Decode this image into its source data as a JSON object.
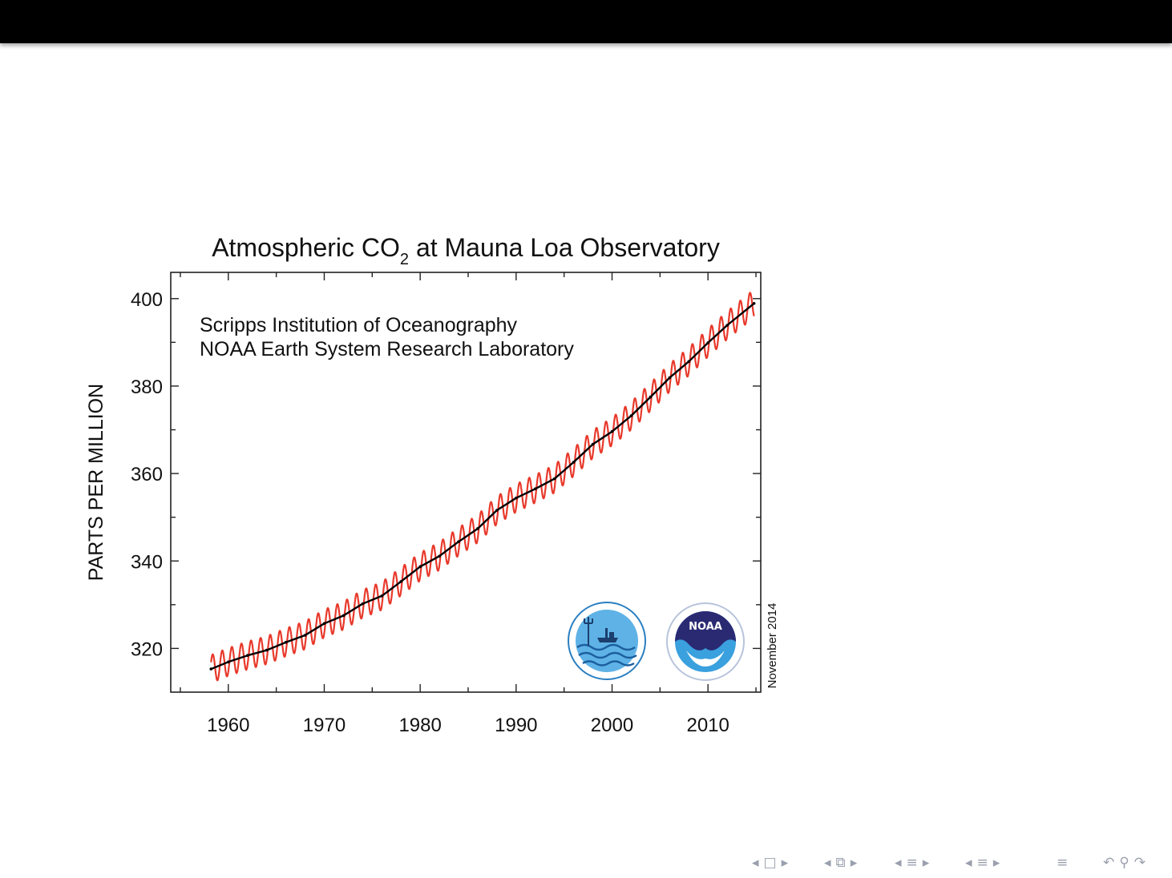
{
  "chart_data": {
    "type": "line",
    "title_main": "Atmospheric CO",
    "title_sub": "2",
    "title_rest": " at Mauna Loa Observatory",
    "ylabel": "PARTS PER MILLION",
    "xlabel": "",
    "xlim": [
      1954,
      2015.5
    ],
    "ylim": [
      310,
      406
    ],
    "x_ticks": [
      1960,
      1970,
      1980,
      1990,
      2000,
      2010
    ],
    "x_tick_labels": [
      "1960",
      "1970",
      "1980",
      "1990",
      "2000",
      "2010"
    ],
    "y_ticks": [
      320,
      340,
      360,
      380,
      400
    ],
    "y_tick_labels": [
      "320",
      "340",
      "360",
      "380",
      "400"
    ],
    "grid": false,
    "annotation_lines": [
      "Scripps Institution of Oceanography",
      "NOAA Earth System Research Laboratory"
    ],
    "side_note": "November 2014",
    "logos": [
      "scripps-ucsd-logo",
      "noaa-logo"
    ],
    "series": [
      {
        "color": "#e8392b",
        "kind": "monthly-seasonal",
        "seasonal_amplitude_ppm": 3.2,
        "x_range": [
          1958.2,
          2014.8
        ]
      },
      {
        "color": "#000000",
        "kind": "annual-trend",
        "x": [
          1958.2,
          1960,
          1962,
          1964,
          1966,
          1968,
          1970,
          1972,
          1974,
          1976,
          1978,
          1980,
          1982,
          1984,
          1986,
          1988,
          1990,
          1992,
          1994,
          1996,
          1998,
          2000,
          2002,
          2004,
          2006,
          2008,
          2010,
          2012,
          2014.8
        ],
        "values": [
          315.3,
          316.9,
          318.4,
          319.6,
          321.4,
          323.0,
          325.7,
          327.5,
          330.2,
          332.0,
          335.3,
          338.7,
          341.1,
          344.4,
          347.4,
          351.6,
          354.4,
          356.5,
          358.8,
          362.6,
          366.7,
          369.6,
          373.2,
          377.5,
          381.9,
          385.6,
          389.9,
          393.9,
          398.9
        ]
      }
    ]
  },
  "nav_icons": [
    "frame-prev-icon",
    "frame-icon",
    "frame-next-icon",
    "subsection-prev-icon",
    "subsection-icon",
    "subsection-next-icon",
    "section-prev-icon",
    "section-icon",
    "section-next-icon",
    "align-icon",
    "undo-icon",
    "search-icon",
    "redo-icon"
  ]
}
